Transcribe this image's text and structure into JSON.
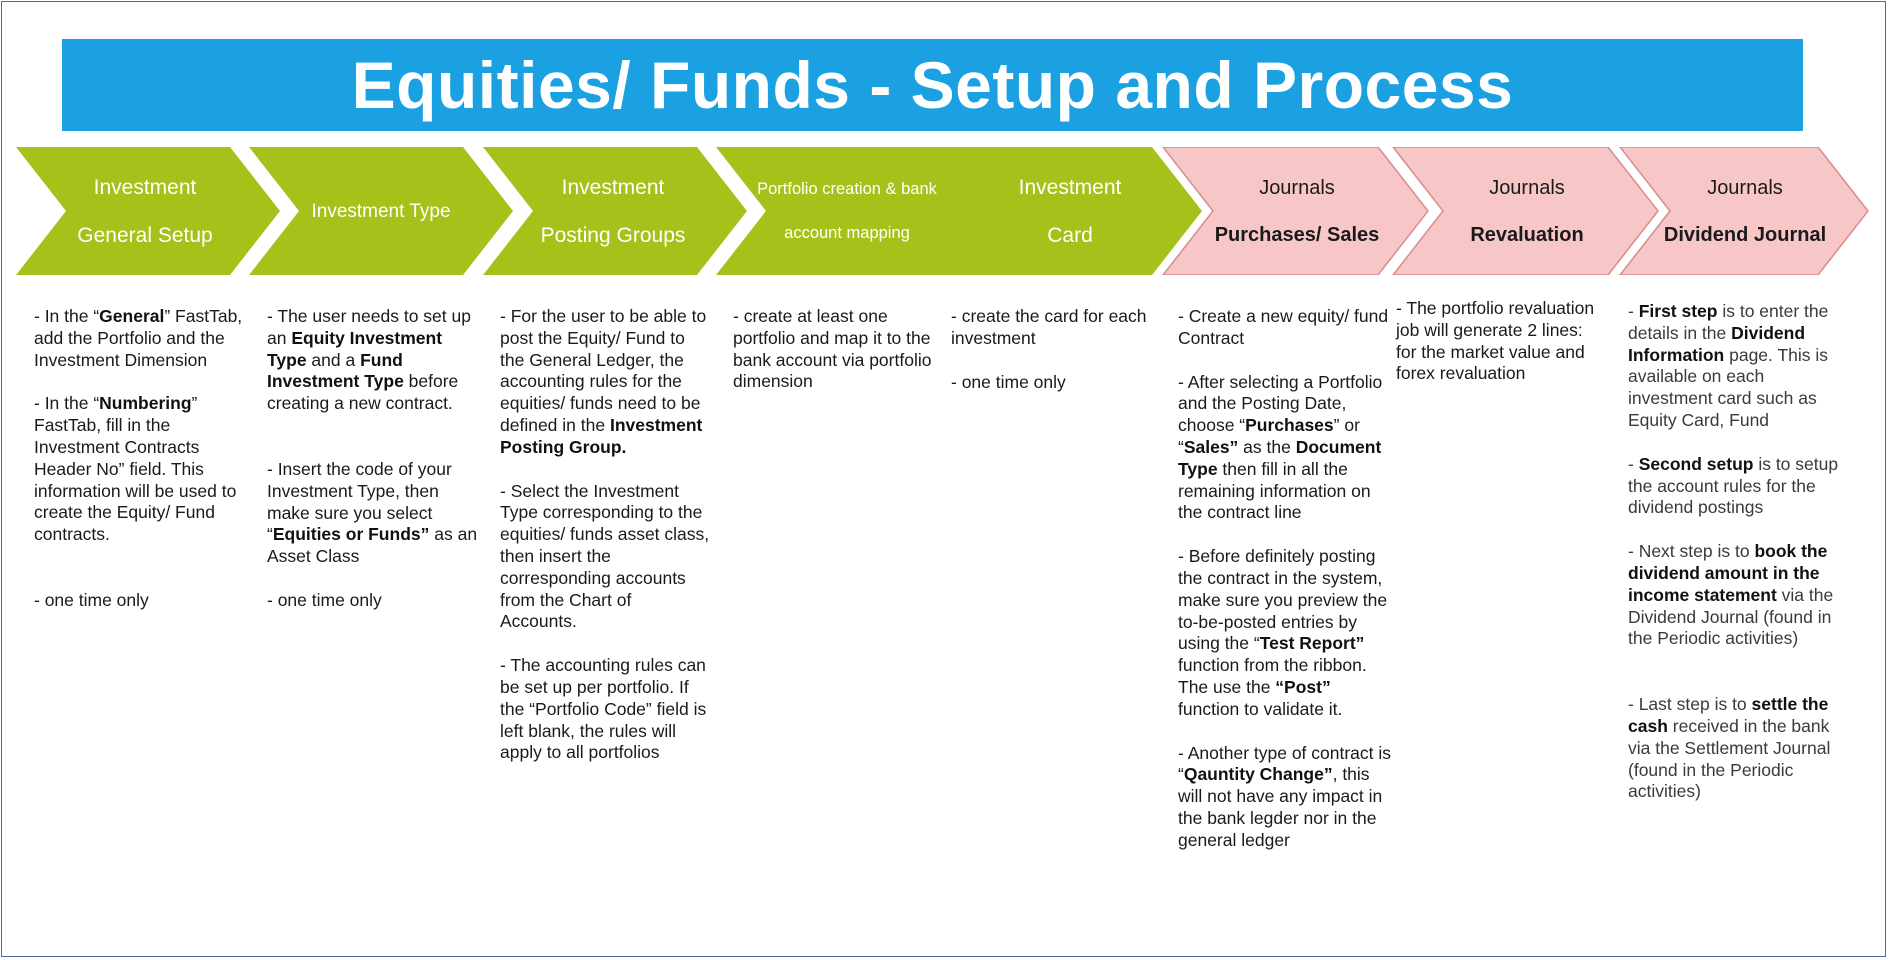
{
  "title": "Equities/ Funds - Setup and Process",
  "colors": {
    "banner": "#1ba1e2",
    "step_green": "#a5c21a",
    "step_pink": "#f7c6c7",
    "step_pink_border": "#d98a8c"
  },
  "steps": [
    {
      "line1": "Investment",
      "line2": "General Setup"
    },
    {
      "line1": "Investment Type"
    },
    {
      "line1": "Investment",
      "line2": "Posting Groups"
    },
    {
      "line1": "Portfolio creation & bank",
      "line2": "account mapping"
    },
    {
      "line1": "Investment",
      "line2": "Card"
    },
    {
      "line1": "Journals",
      "line2": "Purchases/ Sales"
    },
    {
      "line1": "Journals",
      "line2": "Revaluation"
    },
    {
      "line1": "Journals",
      "line2": "Dividend Journal"
    }
  ],
  "col1": {
    "a1": "- In the “",
    "a2": "General",
    "a3": "” FastTab, add the Portfolio and the Investment Dimension",
    "b1": "- In the “",
    "b2": "Numbering",
    "b3": "” FastTab, fill in the Investment Contracts Header No” field. This information will be used to create the Equity/ Fund contracts.",
    "c": "- one time only"
  },
  "col2": {
    "a1": "- The user needs to set up an ",
    "a2": "Equity Investment Type",
    "a3": " and a ",
    "a4": "Fund Investment Type",
    "a5": " before creating a new contract.",
    "b1": "- Insert the code of your Investment Type, then make sure you select “",
    "b2": "Equities or Funds”",
    "b3": " as an Asset Class",
    "c": "- one time only"
  },
  "col3": {
    "a1": "- For the user to be able to post the Equity/ Fund to the General Ledger, the accounting rules for the equities/ funds need to be defined in the ",
    "a2": "Investment Posting Group.",
    "b": "- Select the Investment Type corresponding to the equities/ funds asset class, then insert the corresponding accounts from the Chart of Accounts.",
    "c": "- The accounting rules can be set up per portfolio. If the “Portfolio Code” field is left blank, the rules will apply to all portfolios"
  },
  "col4": {
    "a": "- create at least one portfolio and map it to the bank account via portfolio dimension"
  },
  "col5": {
    "a": "- create the card for each investment",
    "b": "- one time only"
  },
  "col6": {
    "a": "- Create a new equity/ fund Contract",
    "b1": "- After selecting a Portfolio and the Posting Date, choose “",
    "b2": "Purchases",
    "b3": "” or “",
    "b4": "Sales”",
    "b5": " as the ",
    "b6": "Document Type",
    "b7": " then fill in all the remaining information on the contract line",
    "c1": "- Before definitely posting the contract in the system, make sure you preview the to-be-posted entries by using the “",
    "c2": "Test Report”",
    "c3": " function from the ribbon. The use the ",
    "c4": "“Post”",
    "c5": " function to validate it.",
    "d1": "- Another type of contract is “",
    "d2": "Qauntity Change”",
    "d3": ", this will not have any impact in the bank legder nor in the general ledger"
  },
  "col7": {
    "a": "- The portfolio revaluation job will generate 2 lines: for the market value and forex revaluation"
  },
  "col8": {
    "a1": "- ",
    "a2": "First step",
    "a3": " is to enter the details in the ",
    "a4": "Dividend Information",
    "a5": " page. This is available on each investment card such as Equity Card, Fund",
    "b1": "- ",
    "b2": "Second setup",
    "b3": " is to setup the account rules for the dividend postings",
    "c1": "- Next step is to ",
    "c2": "book the dividend amount in the income statement",
    "c3": " via the Dividend Journal (found in the Periodic activities)",
    "d1": "- Last step is to ",
    "d2": "settle the cash",
    "d3": " received in the bank via the Settlement Journal (found in the Periodic activities)"
  }
}
